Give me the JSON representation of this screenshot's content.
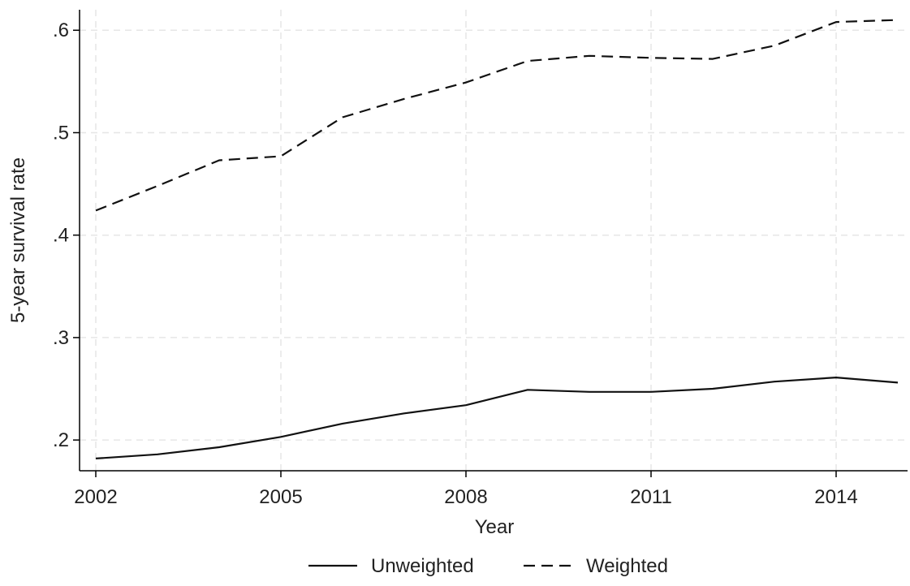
{
  "chart_data": {
    "type": "line",
    "title": "",
    "xlabel": "Year",
    "ylabel": "5-year survival rate",
    "xlim": [
      2002,
      2015
    ],
    "ylim": [
      0.17,
      0.62
    ],
    "x_ticks": [
      2002,
      2005,
      2008,
      2011,
      2014
    ],
    "x_tick_labels": [
      "2002",
      "2005",
      "2008",
      "2011",
      "2014"
    ],
    "y_ticks": [
      0.2,
      0.3,
      0.4,
      0.5,
      0.6
    ],
    "y_tick_labels": [
      ".2",
      ".3",
      ".4",
      ".5",
      ".6"
    ],
    "grid": true,
    "legend_position": "bottom",
    "x": [
      2002,
      2003,
      2004,
      2005,
      2006,
      2007,
      2008,
      2009,
      2010,
      2011,
      2012,
      2013,
      2014,
      2015
    ],
    "series": [
      {
        "name": "Unweighted",
        "style": "solid",
        "color": "#111111",
        "values": [
          0.182,
          0.186,
          0.193,
          0.203,
          0.216,
          0.226,
          0.234,
          0.249,
          0.247,
          0.247,
          0.25,
          0.257,
          0.261,
          0.256
        ]
      },
      {
        "name": "Weighted",
        "style": "dashed",
        "color": "#111111",
        "values": [
          0.424,
          0.448,
          0.473,
          0.477,
          0.515,
          0.533,
          0.549,
          0.57,
          0.575,
          0.573,
          0.572,
          0.585,
          0.608,
          0.61
        ]
      }
    ]
  }
}
